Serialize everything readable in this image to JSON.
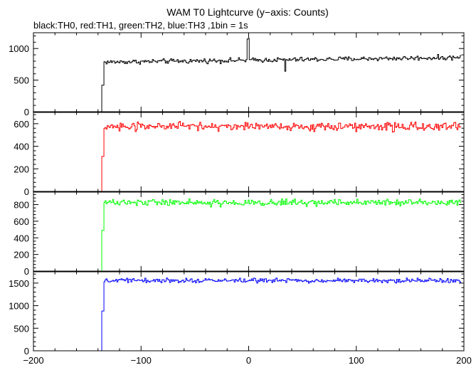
{
  "chart_data": {
    "type": "line",
    "title": "WAM T0 Lightcurve (y−axis: Counts)",
    "subtitle": "black:TH0, red:TH1, green:TH2, blue:TH3 ,1bin = 1s",
    "xlim": [
      -200,
      200
    ],
    "x_ticks": [
      -200,
      -100,
      0,
      100,
      200
    ],
    "x_tick_labels": [
      "−200",
      "−100",
      "0",
      "100",
      "200"
    ],
    "bin_seconds": 1,
    "grid": false,
    "panels": [
      {
        "series_name": "TH0",
        "color": "#000000",
        "ylim": [
          0,
          1250
        ],
        "y_ticks": [
          0,
          500,
          1000
        ],
        "y_tick_labels": [
          "0",
          "500",
          "1000"
        ],
        "x_start": -200,
        "x_end": 197,
        "background_level": 0,
        "step_x": -136,
        "step_low": 420,
        "step_x_end": -135,
        "mean_after": 785,
        "trend_after": 0.22,
        "noise_amp": 55,
        "spikes": [
          {
            "x": -1,
            "value": 1150
          },
          {
            "x": 0,
            "value": 1160
          },
          {
            "x": 34,
            "value": 640
          }
        ]
      },
      {
        "series_name": "TH1",
        "color": "#ff0000",
        "ylim": [
          0,
          700
        ],
        "y_ticks": [
          0,
          200,
          400,
          600
        ],
        "y_tick_labels": [
          "0",
          "200",
          "400",
          "600"
        ],
        "x_start": -200,
        "x_end": 197,
        "background_level": 0,
        "step_x": -136,
        "step_low": 310,
        "step_x_end": -135,
        "mean_after": 575,
        "trend_after": 0,
        "noise_amp": 55,
        "spikes": []
      },
      {
        "series_name": "TH2",
        "color": "#00ff00",
        "ylim": [
          0,
          950
        ],
        "y_ticks": [
          0,
          200,
          400,
          600,
          800
        ],
        "y_tick_labels": [
          "0",
          "200",
          "400",
          "600",
          "800"
        ],
        "x_start": -200,
        "x_end": 197,
        "background_level": 0,
        "step_x": -136,
        "step_low": 490,
        "step_x_end": -135,
        "mean_after": 825,
        "trend_after": 0,
        "noise_amp": 60,
        "spikes": []
      },
      {
        "series_name": "TH3",
        "color": "#0000ff",
        "ylim": [
          0,
          1750
        ],
        "y_ticks": [
          0,
          500,
          1000,
          1500
        ],
        "y_tick_labels": [
          "0",
          "500",
          "1000",
          "1500"
        ],
        "x_start": -200,
        "x_end": 197,
        "background_level": 0,
        "step_x": -136,
        "step_low": 880,
        "step_x_end": -135,
        "mean_after": 1555,
        "trend_after": 0,
        "noise_amp": 70,
        "spikes": []
      }
    ]
  }
}
